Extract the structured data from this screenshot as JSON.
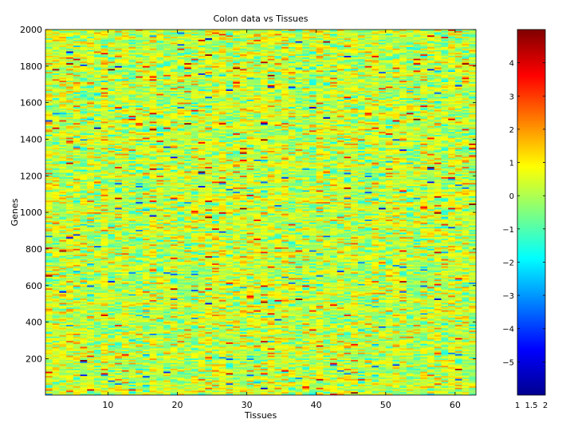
{
  "chart_data": {
    "type": "heatmap",
    "title": "Colon data vs Tissues",
    "xlabel": "Tissues",
    "ylabel": "Genes",
    "xlim": [
      1,
      63
    ],
    "ylim": [
      1,
      2000
    ],
    "x_ticks": [
      10,
      20,
      30,
      40,
      50,
      60
    ],
    "y_ticks": [
      200,
      400,
      600,
      800,
      1000,
      1200,
      1400,
      1600,
      1800,
      2000
    ],
    "n_tissues": 62,
    "n_genes": 2000,
    "value_range": [
      -6,
      5
    ],
    "colormap": "jet",
    "grid": false,
    "colorbar": {
      "ticks": [
        4,
        3,
        2,
        1,
        0,
        -1,
        -2,
        -3,
        -4,
        -5
      ],
      "tick_labels": [
        "4",
        "3",
        "2",
        "1",
        "0",
        "−1",
        "−2",
        "−3",
        "−4",
        "−5"
      ],
      "x_ticks": [
        "1",
        "1.5",
        "2"
      ]
    }
  }
}
